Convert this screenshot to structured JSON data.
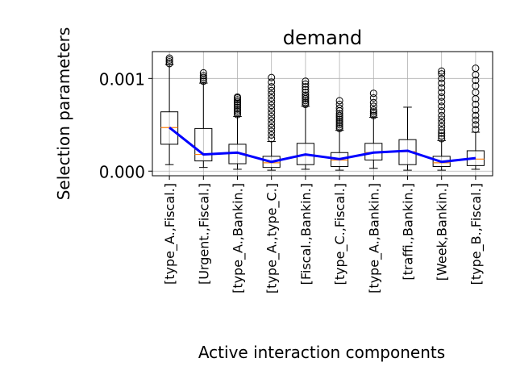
{
  "chart_data": {
    "type": "box",
    "title": "demand",
    "xlabel": "Active interaction components",
    "ylabel": "Selection parameters",
    "categories": [
      "[type_A.,Fiscal.]",
      "[Urgent.,Fiscal.]",
      "[type_A.,Bankin.]",
      "[type_A.,type_C.]",
      "[Fiscal.,Bankin.]",
      "[type_C.,Fiscal.]",
      "[type_A.,Bankin.]",
      "[traffi.,Bankin.]",
      "[Week,Bankin.]",
      "[type_B.,Fiscal.]"
    ],
    "yticks": [
      {
        "value": 0.0,
        "label": "0.000"
      },
      {
        "value": 0.001,
        "label": "0.001"
      }
    ],
    "ylim": [
      -5e-05,
      0.00129
    ],
    "grid": true,
    "boxes": [
      {
        "whislo": 7e-05,
        "q1": 0.00029,
        "med": 0.00047,
        "q3": 0.00064,
        "whishi": 0.00115,
        "fliers": [
          0.00116,
          0.00118,
          0.0012,
          0.00122
        ]
      },
      {
        "whislo": 4e-05,
        "q1": 0.00011,
        "med": 0.00018,
        "q3": 0.00046,
        "whishi": 0.00095,
        "fliers": [
          0.00097,
          0.00099,
          0.00101,
          0.00103,
          0.00106
        ]
      },
      {
        "whislo": 2e-05,
        "q1": 8e-05,
        "med": 0.00019,
        "q3": 0.00029,
        "whishi": 0.00059,
        "fliers": [
          0.00061,
          0.00063,
          0.00065,
          0.00067,
          0.00069,
          0.00071,
          0.00073,
          0.00075,
          0.00077,
          0.00079,
          0.0008
        ]
      },
      {
        "whislo": 1e-05,
        "q1": 4e-05,
        "med": 9e-05,
        "q3": 0.00016,
        "whishi": 0.00032,
        "fliers": [
          0.00035,
          0.00039,
          0.00043,
          0.00047,
          0.00051,
          0.00055,
          0.00059,
          0.00063,
          0.00067,
          0.00071,
          0.00075,
          0.00079,
          0.00083,
          0.00087,
          0.00091,
          0.00096,
          0.00101
        ]
      },
      {
        "whislo": 2e-05,
        "q1": 7e-05,
        "med": 0.00017,
        "q3": 0.0003,
        "whishi": 0.0007,
        "fliers": [
          0.00072,
          0.00074,
          0.00076,
          0.00078,
          0.0008,
          0.00082,
          0.00085,
          0.00088,
          0.00091,
          0.00094,
          0.00097
        ]
      },
      {
        "whislo": 1e-05,
        "q1": 5e-05,
        "med": 0.00012,
        "q3": 0.0002,
        "whishi": 0.00044,
        "fliers": [
          0.00046,
          0.00048,
          0.0005,
          0.00052,
          0.00054,
          0.00056,
          0.00058,
          0.0006,
          0.00062,
          0.00065,
          0.00068,
          0.00072,
          0.00076
        ]
      },
      {
        "whislo": 3e-05,
        "q1": 0.00012,
        "med": 0.0002,
        "q3": 0.0003,
        "whishi": 0.00058,
        "fliers": [
          0.0006,
          0.00062,
          0.00064,
          0.00066,
          0.0007,
          0.00074,
          0.00079,
          0.00084
        ]
      },
      {
        "whislo": 1e-05,
        "q1": 7e-05,
        "med": 0.00021,
        "q3": 0.00034,
        "whishi": 0.00069,
        "fliers": []
      },
      {
        "whislo": 1e-05,
        "q1": 5e-05,
        "med": 9e-05,
        "q3": 0.00016,
        "whishi": 0.00033,
        "fliers": [
          0.00035,
          0.00038,
          0.00041,
          0.00044,
          0.00048,
          0.00052,
          0.00056,
          0.0006,
          0.00065,
          0.0007,
          0.00075,
          0.0008,
          0.00085,
          0.0009,
          0.00095,
          0.001,
          0.00105,
          0.00108
        ]
      },
      {
        "whislo": 2e-05,
        "q1": 6e-05,
        "med": 0.00013,
        "q3": 0.00022,
        "whishi": 0.00042,
        "fliers": [
          0.00045,
          0.0005,
          0.00055,
          0.0006,
          0.00066,
          0.00072,
          0.00078,
          0.00085,
          0.00092,
          0.00098,
          0.00104,
          0.00111
        ]
      }
    ],
    "trend_line": {
      "color": "#0000ff",
      "values": [
        0.00047,
        0.00018,
        0.0002,
        0.0001,
        0.00018,
        0.00013,
        0.0002,
        0.00022,
        0.0001,
        0.00014
      ]
    },
    "colors": {
      "box": "#000000",
      "median": "#ff7f0e",
      "grid": "#b0b0b0"
    }
  }
}
